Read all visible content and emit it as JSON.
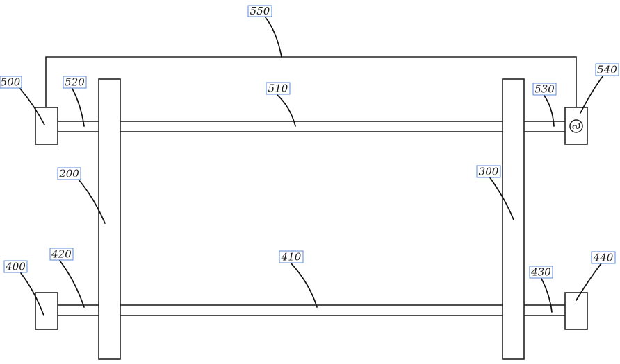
{
  "labels": {
    "l200": "200",
    "l300": "300",
    "l400": "400",
    "l410": "410",
    "l420": "420",
    "l430": "430",
    "l440": "440",
    "l500": "500",
    "l510": "510",
    "l520": "520",
    "l530": "530",
    "l540": "540",
    "l550": "550"
  },
  "colors": {
    "line": "#222222",
    "label_box_border": "#4a7fd0"
  },
  "icons": {
    "component_540": "ac-source-icon"
  }
}
